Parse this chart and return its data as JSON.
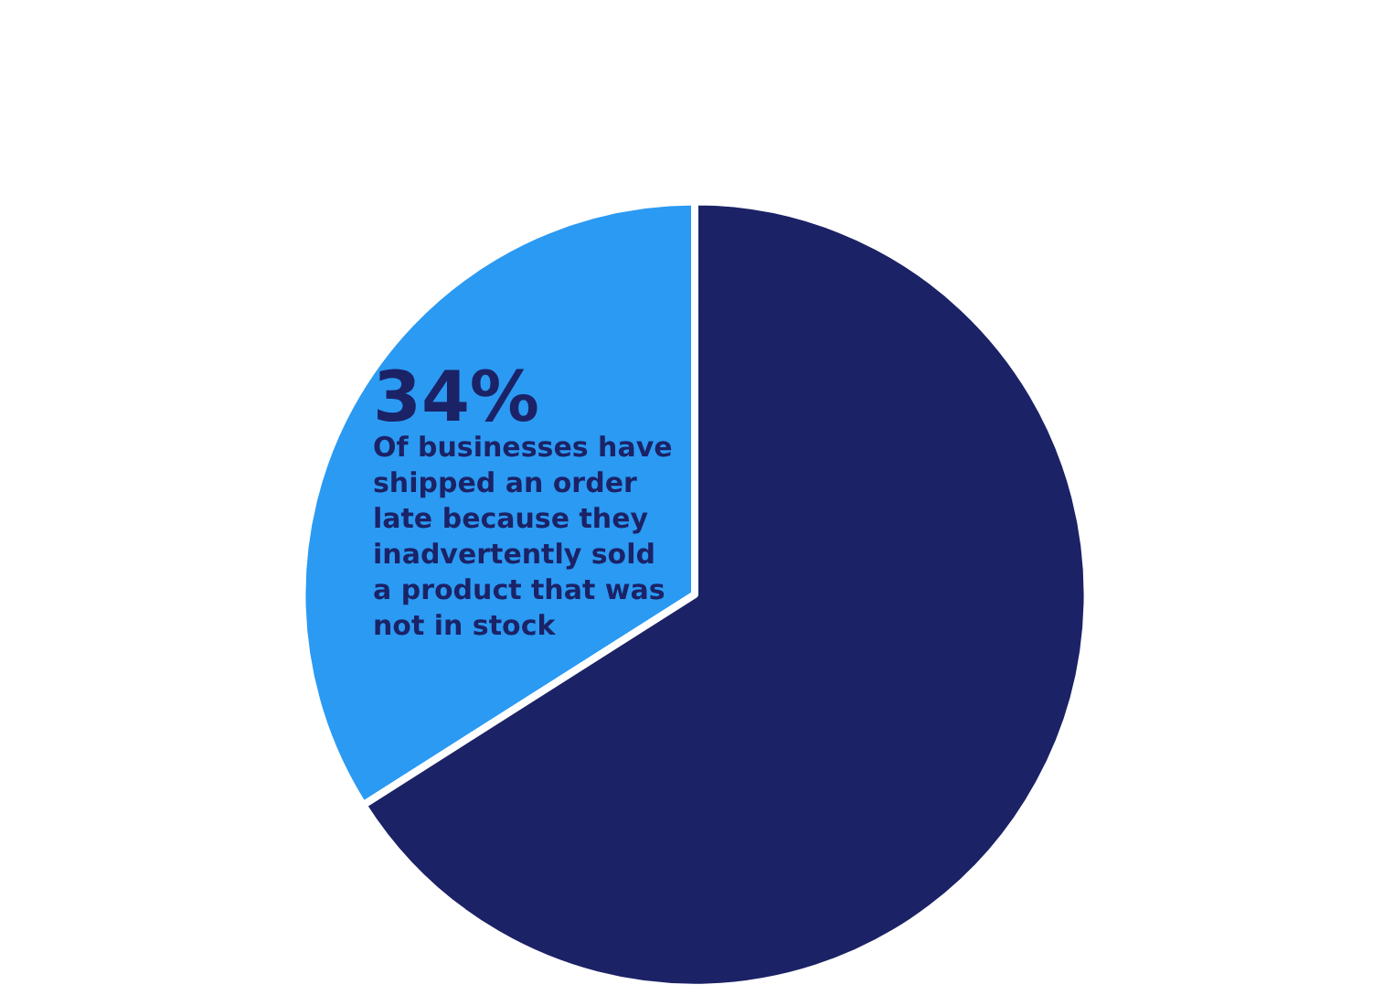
{
  "chart_data": {
    "type": "pie",
    "categories": [
      "Of businesses have shipped an order late because they inadvertently sold a product that was not in stock",
      null
    ],
    "values": [
      34,
      66
    ],
    "value_labels": [
      "34%",
      null
    ],
    "colors": [
      "#2b9af3",
      "#1b2266"
    ],
    "legend": false
  }
}
